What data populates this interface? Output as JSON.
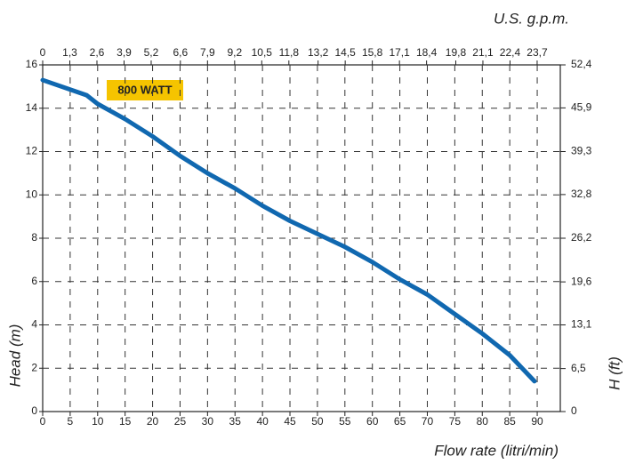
{
  "chart_data": {
    "type": "line",
    "annotations": [
      "800 WATT"
    ],
    "x_label": "Flow rate (litri/min)",
    "x2_label": "U.S. g.p.m.",
    "y_label": "Head (m)",
    "y2_label": "H (ft)",
    "xlim": [
      0,
      94.2
    ],
    "xticks": [
      0,
      5,
      10,
      15,
      20,
      25,
      30,
      35,
      40,
      45,
      50,
      55,
      60,
      65,
      70,
      75,
      80,
      85,
      90
    ],
    "x2lim": [
      0,
      24.81
    ],
    "x2ticks": [
      0,
      {
        "value": 1.3,
        "label": "1,3"
      },
      {
        "value": 2.6,
        "label": "2,6"
      },
      {
        "value": 3.9,
        "label": "3,9"
      },
      {
        "value": 5.2,
        "label": "5,2"
      },
      {
        "value": 6.6,
        "label": "6,6"
      },
      {
        "value": 7.9,
        "label": "7,9"
      },
      {
        "value": 9.2,
        "label": "9,2"
      },
      {
        "value": 10.5,
        "label": "10,5"
      },
      {
        "value": 11.8,
        "label": "11,8"
      },
      {
        "value": 13.2,
        "label": "13,2"
      },
      {
        "value": 14.5,
        "label": "14,5"
      },
      {
        "value": 15.8,
        "label": "15,8"
      },
      {
        "value": 17.1,
        "label": "17,1"
      },
      {
        "value": 18.4,
        "label": "18,4"
      },
      {
        "value": 19.8,
        "label": "19,8"
      },
      {
        "value": 21.1,
        "label": "21,1"
      },
      {
        "value": 22.4,
        "label": "22,4"
      },
      {
        "value": 23.7,
        "label": "23,7"
      }
    ],
    "ylim": [
      0,
      16
    ],
    "yticks": [
      0,
      2,
      4,
      6,
      8,
      10,
      12,
      14,
      16
    ],
    "y2lim": [
      0,
      52.4
    ],
    "y2ticks": [
      0,
      {
        "value": 6.5,
        "label": "6,5"
      },
      {
        "value": 13.1,
        "label": "13,1"
      },
      {
        "value": 19.6,
        "label": "19,6"
      },
      {
        "value": 26.2,
        "label": "26,2"
      },
      {
        "value": 32.8,
        "label": "32,8"
      },
      {
        "value": 39.3,
        "label": "39,3"
      },
      {
        "value": 45.9,
        "label": "45,9"
      },
      {
        "value": 52.4,
        "label": "52,4"
      }
    ],
    "grid": true,
    "series": [
      {
        "color": "#1068b0",
        "x": [
          0,
          8,
          10,
          15,
          20,
          25,
          30,
          35,
          40,
          45,
          50,
          55,
          60,
          65,
          70,
          75,
          80,
          85,
          89.5
        ],
        "values": [
          15.3,
          14.6,
          14.2,
          13.5,
          12.7,
          11.8,
          11.0,
          10.3,
          9.5,
          8.8,
          8.2,
          7.6,
          6.9,
          6.1,
          5.4,
          4.5,
          3.6,
          2.6,
          1.4
        ]
      }
    ]
  }
}
